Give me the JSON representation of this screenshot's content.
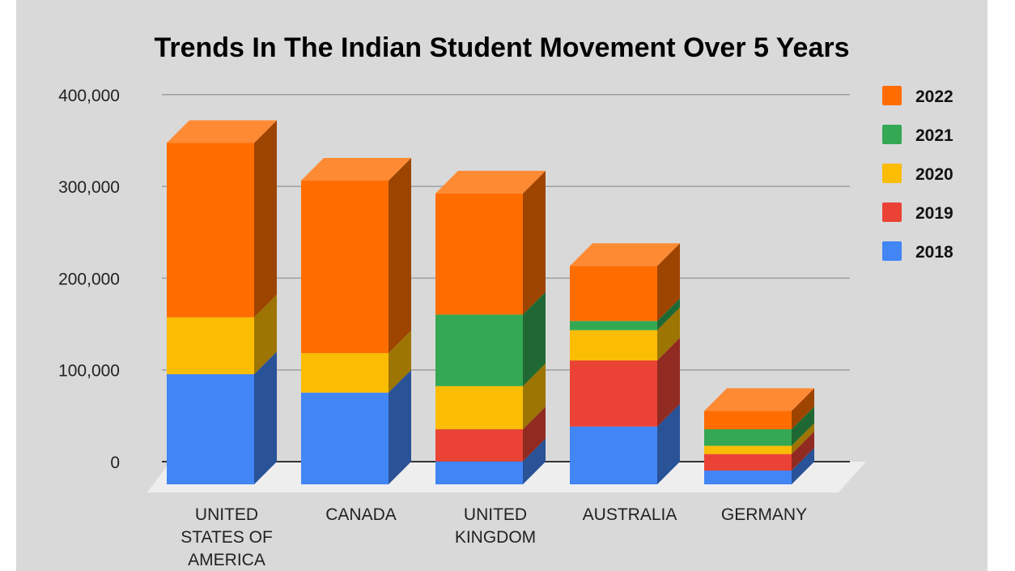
{
  "chart_data": {
    "type": "bar",
    "stacked": true,
    "three_d": true,
    "title": "Trends In The Indian Student Movement Over 5 Years",
    "xlabel": "",
    "ylabel": "",
    "ylim": [
      0,
      400000
    ],
    "yticks": [
      "0",
      "100,000",
      "200,000",
      "300,000",
      "400,000"
    ],
    "grid": true,
    "legend_position": "right",
    "categories": [
      [
        "UNITED",
        "STATES OF",
        "AMERICA"
      ],
      [
        "CANADA"
      ],
      [
        "UNITED",
        "KINGDOM"
      ],
      [
        "AUSTRALIA"
      ],
      [
        "GERMANY"
      ]
    ],
    "series": [
      {
        "name": "2018",
        "color": "#4285f4",
        "values": [
          120000,
          100000,
          25000,
          63000,
          15000
        ]
      },
      {
        "name": "2019",
        "color": "#ea4335",
        "values": [
          0,
          0,
          35000,
          72000,
          18000
        ]
      },
      {
        "name": "2020",
        "color": "#fbbc04",
        "values": [
          62000,
          43000,
          47000,
          33000,
          9000
        ]
      },
      {
        "name": "2021",
        "color": "#34a853",
        "values": [
          0,
          0,
          78000,
          10000,
          18000
        ]
      },
      {
        "name": "2022",
        "color": "#ff6d01",
        "values": [
          190000,
          188000,
          132000,
          60000,
          20000
        ]
      }
    ],
    "legend_order": [
      "2022",
      "2021",
      "2020",
      "2019",
      "2018"
    ]
  }
}
